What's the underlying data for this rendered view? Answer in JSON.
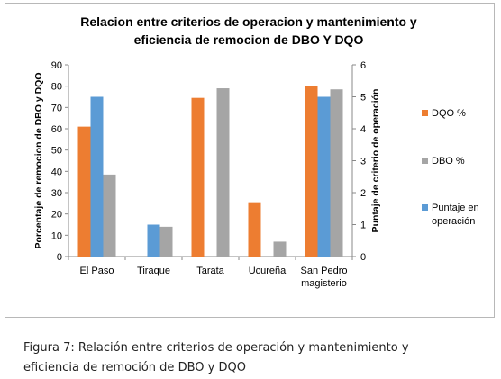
{
  "chart_data": {
    "type": "bar",
    "title_lines": [
      "Relacion entre criterios de operacion y mantenimiento y",
      "eficiencia de remocion de DBO Y DQO"
    ],
    "categories": [
      [
        "El Paso"
      ],
      [
        "Tiraque"
      ],
      [
        "Tarata"
      ],
      [
        "Ucureña"
      ],
      [
        "San Pedro",
        "magisterio"
      ]
    ],
    "series": [
      {
        "name": "DQO %",
        "axis": "left",
        "color": "#ed7d31",
        "values": [
          61,
          null,
          74.5,
          25.5,
          80
        ]
      },
      {
        "name": "Puntaje en operación",
        "axis": "right",
        "color": "#5b9bd5",
        "values": [
          5,
          1,
          null,
          null,
          5
        ]
      },
      {
        "name": "DBO %",
        "axis": "left",
        "color": "#a5a5a5",
        "values": [
          38.5,
          14,
          79,
          7,
          78.5
        ]
      }
    ],
    "legend_order": [
      0,
      2,
      1
    ],
    "legend_lines": [
      [
        "DQO %"
      ],
      [
        "DBO %"
      ],
      [
        "Puntaje en",
        "operación"
      ]
    ],
    "ylabel": "Porcentaje de remocion de DBO y DQO",
    "y2label": "Puntaje de criterio de operación",
    "ylim": [
      0,
      90
    ],
    "yticks": [
      0,
      10,
      20,
      30,
      40,
      50,
      60,
      70,
      80,
      90
    ],
    "y2lim": [
      0,
      6
    ],
    "y2ticks": [
      0,
      1,
      2,
      3,
      4,
      5,
      6
    ],
    "grid": false,
    "legend_position": "right"
  },
  "caption": {
    "line1": "Figura 7: Relación entre criterios de operación y mantenimiento y",
    "line2": "eficiencia de remoción de DBO y DQO"
  }
}
